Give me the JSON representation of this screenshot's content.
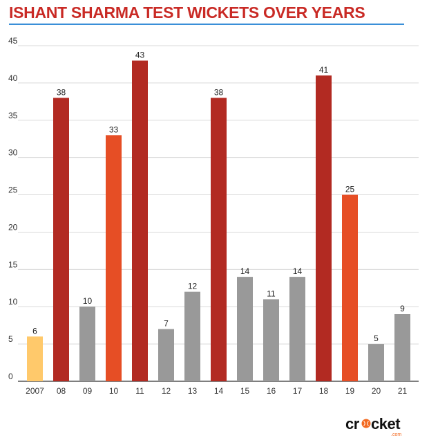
{
  "chart_data": {
    "type": "bar",
    "title": "ISHANT SHARMA TEST WICKETS OVER YEARS",
    "xlabel": "",
    "ylabel": "",
    "ylim": [
      0,
      45
    ],
    "yticks": [
      0,
      5,
      10,
      15,
      20,
      25,
      30,
      35,
      40,
      45
    ],
    "grid": true,
    "categories": [
      "2007",
      "08",
      "09",
      "10",
      "11",
      "12",
      "13",
      "14",
      "15",
      "16",
      "17",
      "18",
      "19",
      "20",
      "21"
    ],
    "values": [
      6,
      38,
      10,
      33,
      43,
      7,
      12,
      38,
      14,
      11,
      14,
      41,
      25,
      5,
      9
    ],
    "bar_colors": [
      "#ffc96b",
      "#b22a22",
      "#999999",
      "#e64e25",
      "#b22a22",
      "#999999",
      "#999999",
      "#b22a22",
      "#999999",
      "#999999",
      "#999999",
      "#b22a22",
      "#e64e25",
      "#999999",
      "#999999"
    ],
    "data_labels": true
  },
  "colors": {
    "title": "#c92a25",
    "title_rule": "#3a8fd8",
    "grid": "#d9d9d9",
    "axis": "#555555"
  },
  "logo": {
    "text_main": "cricket",
    "text_sub": ".com",
    "accent": "#f36a21"
  }
}
